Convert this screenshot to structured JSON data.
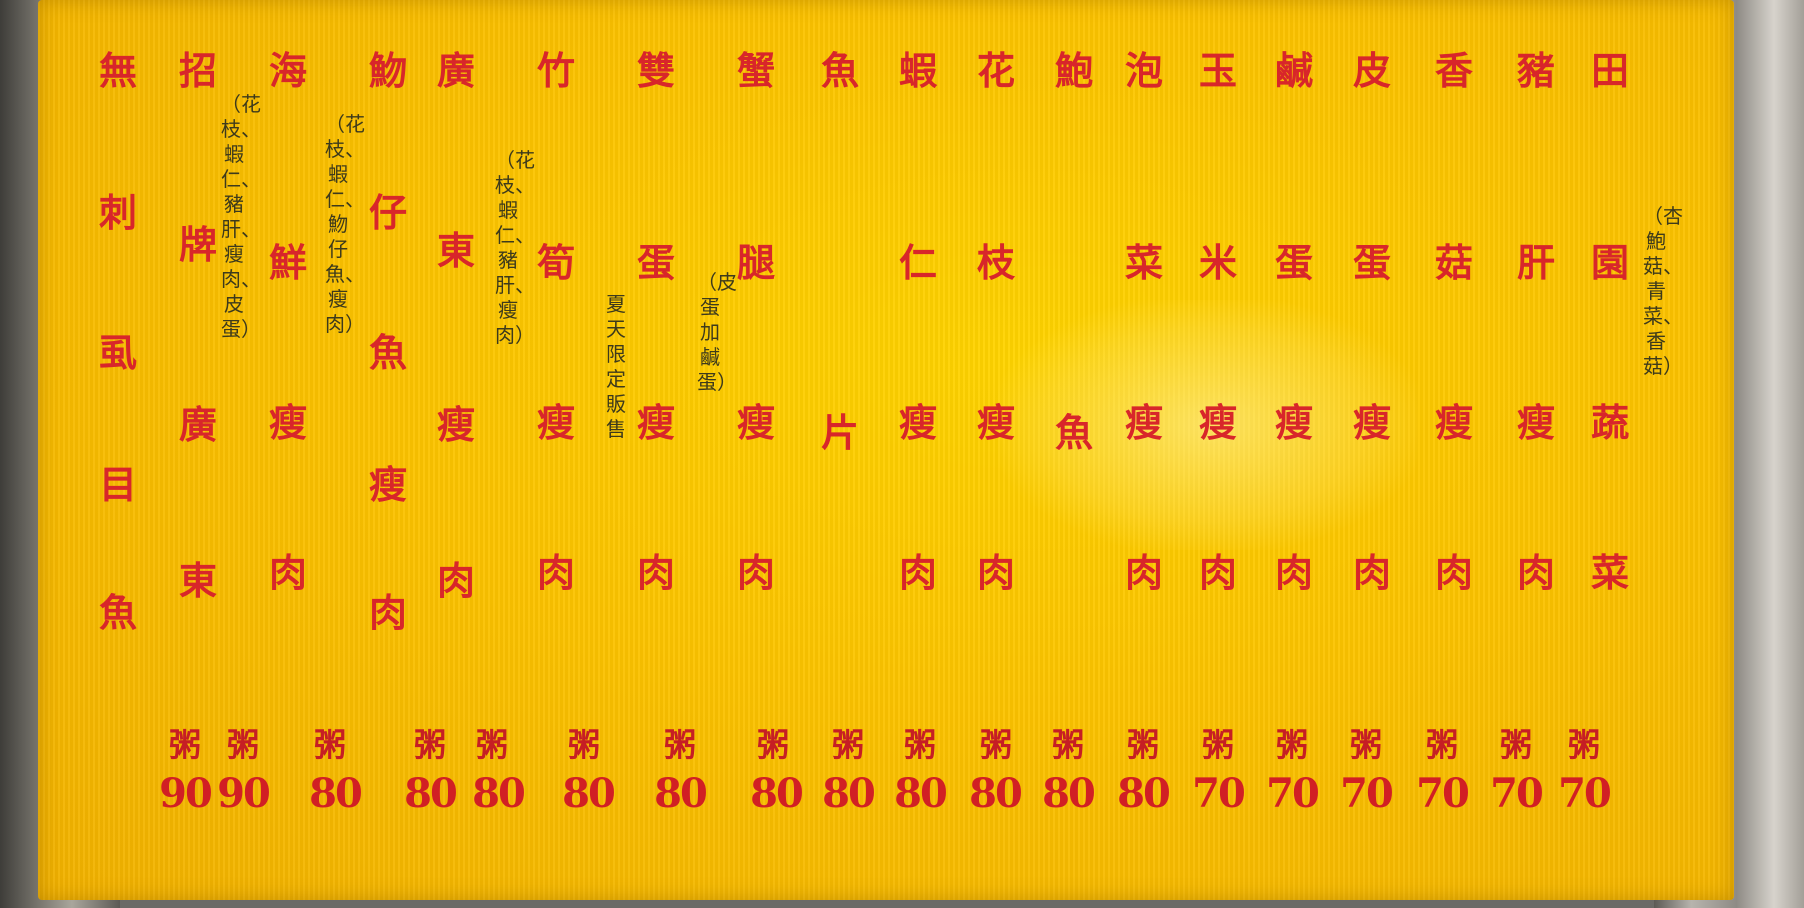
{
  "menu": [
    {
      "name": "無刺虱目魚",
      "note": "",
      "congee": "粥",
      "price": "90"
    },
    {
      "name": "招牌廣東",
      "note": "（花枝、蝦仁、豬肝、瘦肉、皮蛋）",
      "congee": "粥",
      "price": "90"
    },
    {
      "name": "海鮮瘦肉",
      "note": "（花枝、蝦仁、魩仔魚、瘦肉）",
      "congee": "粥",
      "price": "80"
    },
    {
      "name": "魩仔魚瘦肉",
      "note": "",
      "congee": "粥",
      "price": "80"
    },
    {
      "name": "廣東瘦肉",
      "note": "（花枝、蝦仁、豬肝、瘦肉）",
      "congee": "粥",
      "price": "80"
    },
    {
      "name": "竹筍瘦肉",
      "note": "夏天限定販售",
      "congee": "粥",
      "price": "80"
    },
    {
      "name": "雙蛋瘦肉",
      "note": "（皮蛋加鹹蛋）",
      "congee": "粥",
      "price": "80"
    },
    {
      "name": "蟹腿瘦肉",
      "note": "",
      "congee": "粥",
      "price": "80"
    },
    {
      "name": "魚片",
      "note": "",
      "congee": "粥",
      "price": "80"
    },
    {
      "name": "蝦仁瘦肉",
      "note": "",
      "congee": "粥",
      "price": "80"
    },
    {
      "name": "花枝瘦肉",
      "note": "",
      "congee": "粥",
      "price": "80"
    },
    {
      "name": "鮑魚",
      "note": "",
      "congee": "粥",
      "price": "80"
    },
    {
      "name": "泡菜瘦肉",
      "note": "",
      "congee": "粥",
      "price": "80"
    },
    {
      "name": "玉米瘦肉",
      "note": "",
      "congee": "粥",
      "price": "70"
    },
    {
      "name": "鹹蛋瘦肉",
      "note": "",
      "congee": "粥",
      "price": "70"
    },
    {
      "name": "皮蛋瘦肉",
      "note": "",
      "congee": "粥",
      "price": "70"
    },
    {
      "name": "香菇瘦肉",
      "note": "",
      "congee": "粥",
      "price": "70"
    },
    {
      "name": "豬肝瘦肉",
      "note": "",
      "congee": "粥",
      "price": "70"
    },
    {
      "name": "田園蔬菜",
      "note": "（杏鮑菇、青菜、香菇）",
      "congee": "粥",
      "price": "70"
    }
  ]
}
